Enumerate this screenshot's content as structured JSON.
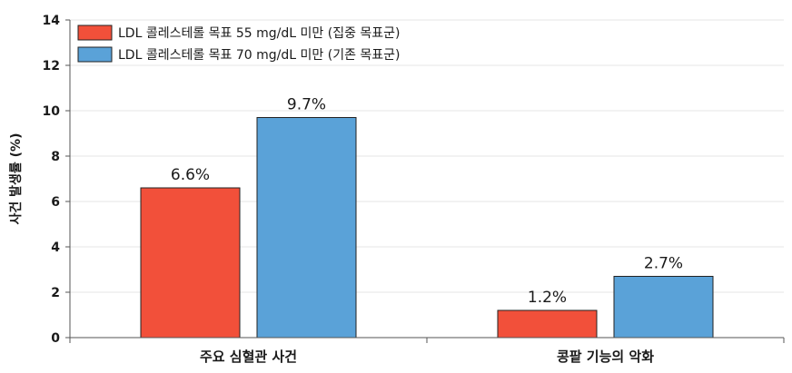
{
  "chart_data": {
    "type": "bar",
    "categories": [
      "주요 심혈관 사건",
      "콩팥 기능의 악화"
    ],
    "series": [
      {
        "name": "LDL 콜레스테롤 목표 55 mg/dL 미만 (집중 목표군)",
        "values": [
          6.6,
          1.2
        ],
        "labels": [
          "6.6%",
          "1.2%"
        ],
        "color": "#f2503a"
      },
      {
        "name": "LDL 콜레스테롤 목표 70 mg/dL 미만 (기존 목표군)",
        "values": [
          9.7,
          2.7
        ],
        "labels": [
          "9.7%",
          "2.7%"
        ],
        "color": "#5aa2d8"
      }
    ],
    "ylabel": "사건 발생률 (%)",
    "xlabel": "",
    "ylim": [
      0,
      14
    ],
    "yticks": [
      0,
      2,
      4,
      6,
      8,
      10,
      12,
      14
    ],
    "grid": true,
    "legend_position": "top-left"
  }
}
